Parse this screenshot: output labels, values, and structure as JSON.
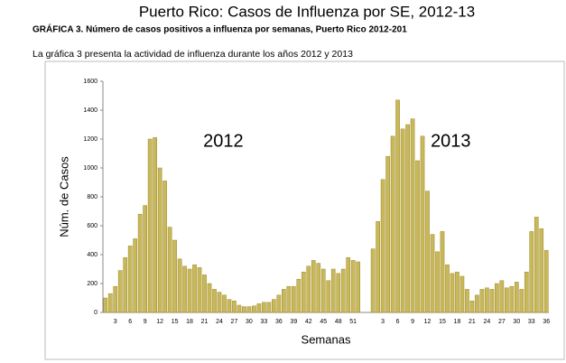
{
  "header": {
    "title": "Puerto Rico: Casos de Influenza por SE, 2012-13",
    "subtitle": "GRÁFICA 3. Número de casos positivos a influenza por semanas, Puerto Rico 2012-201",
    "text": "La gráfica 3 presenta la actividad de influenza durante los años 2012 y 2013"
  },
  "chart_data": {
    "type": "bar",
    "y_label": "Núm. de Casos",
    "x_label": "Semanas",
    "annotations": [
      "2012",
      "2013"
    ],
    "color": "#c9b85a",
    "categories": [
      null,
      null,
      "3",
      null,
      null,
      "6",
      null,
      null,
      "9",
      null,
      null,
      "12",
      null,
      null,
      "15",
      null,
      null,
      "18",
      null,
      null,
      "21",
      null,
      null,
      "24",
      null,
      null,
      "27",
      null,
      null,
      "30",
      null,
      null,
      "33",
      null,
      null,
      "36",
      null,
      null,
      "39",
      null,
      null,
      "42",
      null,
      null,
      "45",
      null,
      null,
      "48",
      null,
      null,
      "51",
      null,
      null,
      null,
      null,
      null,
      "3",
      null,
      null,
      "6",
      null,
      null,
      "9",
      null,
      null,
      "12",
      null,
      null,
      "15",
      null,
      null,
      "18",
      null,
      null,
      "21",
      null,
      null,
      "24",
      null,
      null,
      "27",
      null,
      null,
      "30",
      null,
      null,
      "33",
      null,
      null,
      "36"
    ],
    "values": [
      100,
      130,
      180,
      290,
      380,
      460,
      510,
      680,
      740,
      1200,
      1210,
      1000,
      910,
      590,
      500,
      370,
      320,
      300,
      330,
      310,
      260,
      200,
      160,
      140,
      120,
      90,
      80,
      50,
      40,
      40,
      45,
      60,
      70,
      70,
      90,
      120,
      160,
      180,
      180,
      230,
      280,
      320,
      360,
      340,
      300,
      220,
      300,
      270,
      300,
      380,
      360,
      350,
      null,
      null,
      440,
      630,
      920,
      1080,
      1220,
      1470,
      1270,
      1300,
      1340,
      1050,
      1220,
      840,
      540,
      420,
      560,
      330,
      270,
      280,
      250,
      160,
      80,
      120,
      160,
      170,
      160,
      200,
      220,
      170,
      180,
      210,
      160,
      280,
      560,
      660,
      580,
      430
    ],
    "ylim": [
      0,
      1600
    ],
    "yticks": [
      0,
      200,
      400,
      600,
      800,
      1000,
      1200,
      1400,
      1600
    ]
  }
}
